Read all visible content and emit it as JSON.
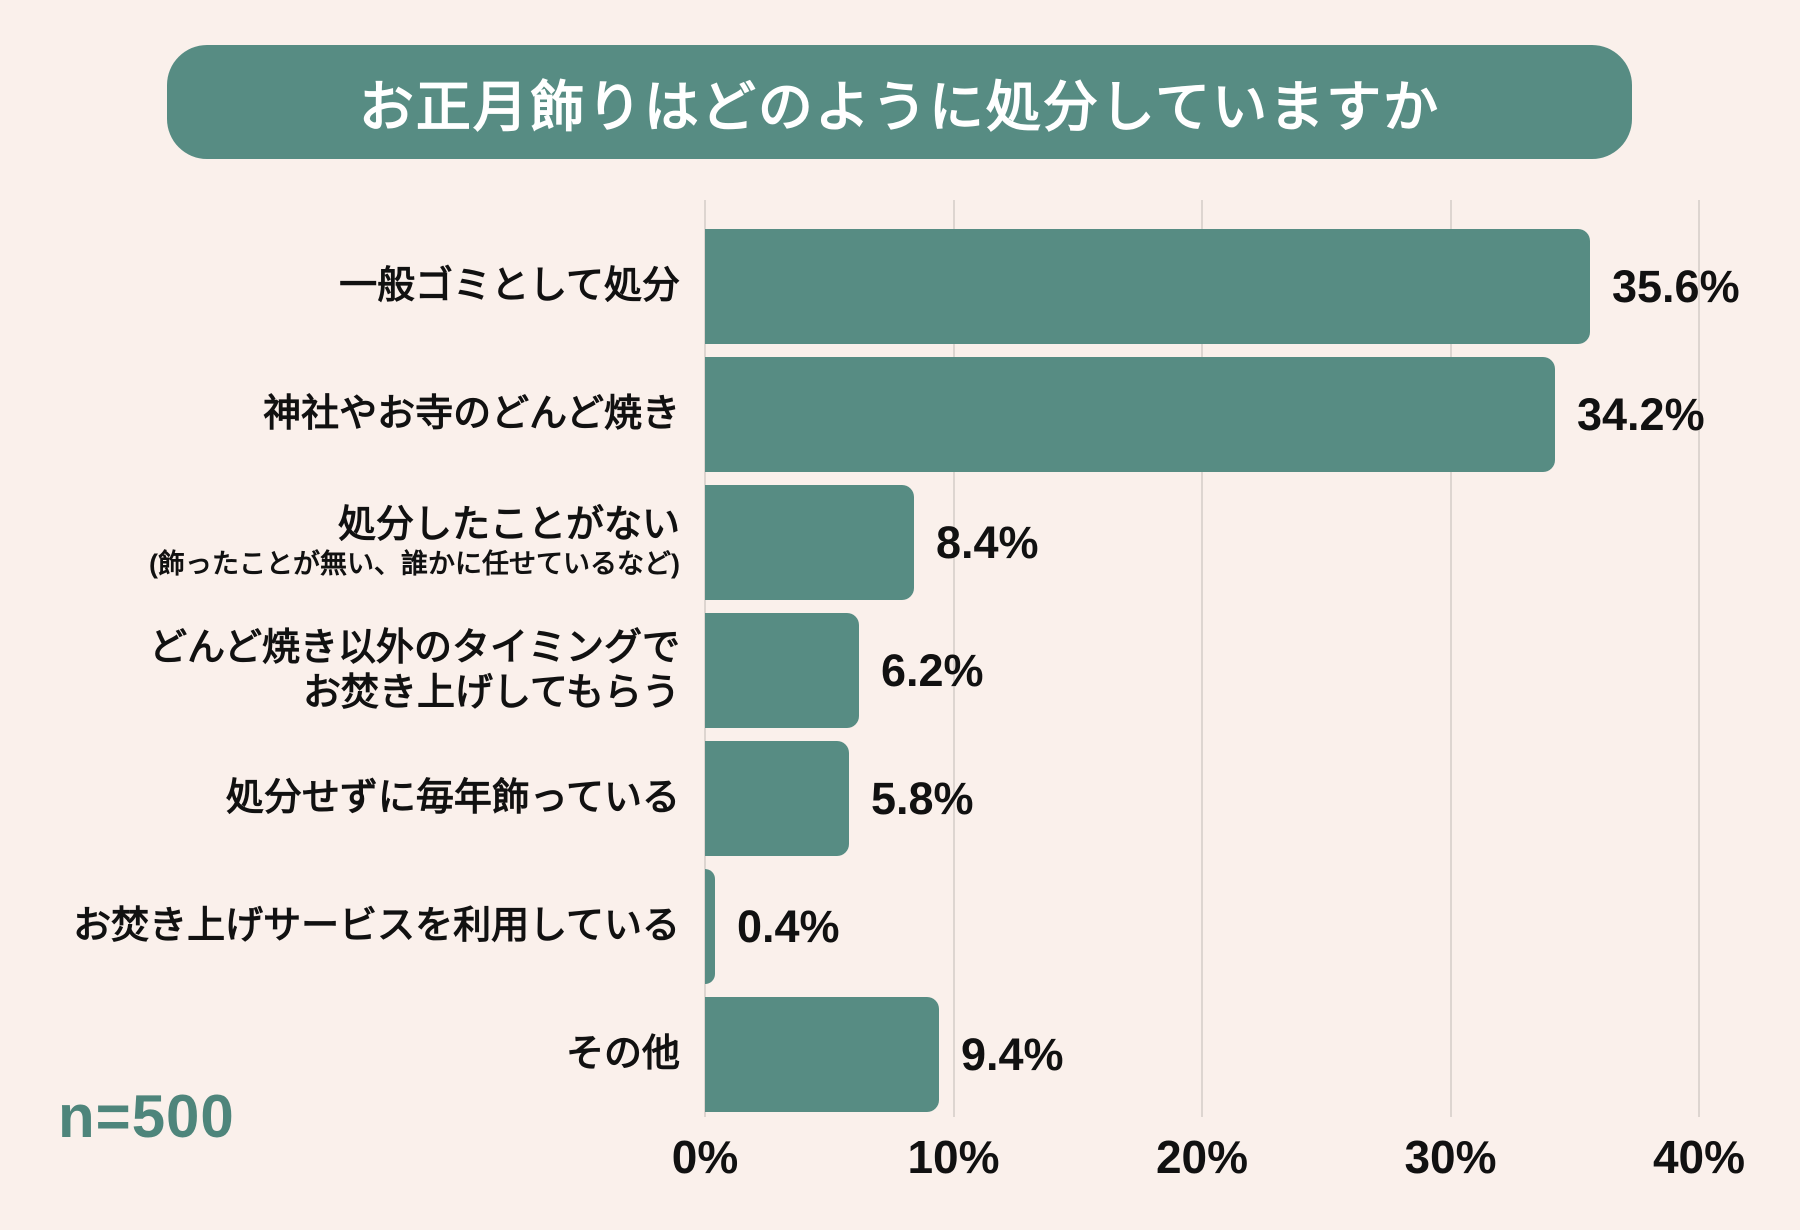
{
  "title": "お正月飾りはどのように処分していますか",
  "sample_label": "n=500",
  "colors": {
    "background": "#faf0eb",
    "bar": "#578c83",
    "title_bg": "#578c83",
    "title_text": "#ffffff",
    "text": "#111111",
    "sample_text": "#4e857b",
    "gridline": "#ddd5d0"
  },
  "chart_data": {
    "type": "bar",
    "orientation": "horizontal",
    "title": "お正月飾りはどのように処分していますか",
    "categories": [
      {
        "lines": [
          "一般ゴミとして処分"
        ],
        "sublines": []
      },
      {
        "lines": [
          "神社やお寺のどんど焼き"
        ],
        "sublines": []
      },
      {
        "lines": [
          "処分したことがない"
        ],
        "sublines": [
          "(飾ったことが無い、誰かに任せているなど)"
        ]
      },
      {
        "lines": [
          "どんど焼き以外のタイミングで",
          "お焚き上げしてもらう"
        ],
        "sublines": []
      },
      {
        "lines": [
          "処分せずに毎年飾っている"
        ],
        "sublines": []
      },
      {
        "lines": [
          "お焚き上げサービスを利用している"
        ],
        "sublines": []
      },
      {
        "lines": [
          "その他"
        ],
        "sublines": []
      }
    ],
    "values": [
      35.6,
      34.2,
      8.4,
      6.2,
      5.8,
      0.4,
      9.4
    ],
    "value_labels": [
      "35.6%",
      "34.2%",
      "8.4%",
      "6.2%",
      "5.8%",
      "0.4%",
      "9.4%"
    ],
    "x_ticks": [
      "0%",
      "10%",
      "20%",
      "30%",
      "40%"
    ],
    "x_tick_values": [
      0,
      10,
      20,
      30,
      40
    ],
    "xlim": [
      0,
      40
    ],
    "grid": true,
    "legend": false,
    "sample_size": "n=500"
  }
}
